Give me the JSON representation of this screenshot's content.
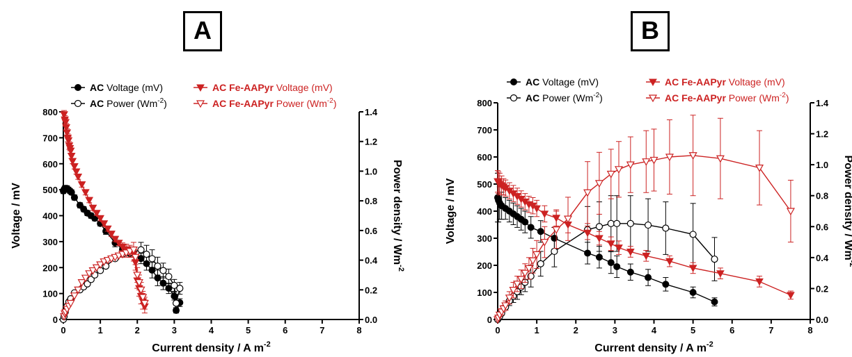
{
  "panels": [
    "A",
    "B"
  ],
  "chart_data": [
    {
      "type": "scatter",
      "panel": "A",
      "xlabel": "Current density / A m",
      "xlabel_sup": "-2",
      "ylabel_left": "Voltage / mV",
      "ylabel_right": "Power density / Wm",
      "ylabel_right_sup": "-2",
      "xlim": [
        0,
        8
      ],
      "ylim_left": [
        0,
        800
      ],
      "ylim_right": [
        0,
        1.4
      ],
      "xticks": [
        0,
        1,
        2,
        3,
        4,
        5,
        6,
        7,
        8
      ],
      "yticks_left": [
        0,
        100,
        200,
        300,
        400,
        500,
        600,
        700,
        800
      ],
      "yticks_right": [
        0.0,
        0.2,
        0.4,
        0.6,
        0.8,
        1.0,
        1.2,
        1.4
      ],
      "legend": [
        {
          "bold": "AC",
          "text": " Voltage (mV)",
          "color": "#000000",
          "marker": "circle-filled"
        },
        {
          "bold": "AC",
          "text": " Power (Wm",
          "sup": "-2",
          "tail": ")",
          "color": "#000000",
          "marker": "circle-open"
        },
        {
          "bold": "AC Fe-AAPyr",
          "text": " Voltage (mV)",
          "color": "#cc2222",
          "marker": "tri-filled"
        },
        {
          "bold": "AC Fe-AAPyr",
          "text": " Power (Wm",
          "sup": "-2",
          "tail": ")",
          "color": "#cc2222",
          "marker": "tri-open"
        }
      ],
      "series": [
        {
          "key": "ac_voltage",
          "axis": "left",
          "color": "#000000",
          "marker": "circle-filled",
          "x": [
            0.0,
            0.02,
            0.04,
            0.06,
            0.08,
            0.1,
            0.14,
            0.18,
            0.22,
            0.3,
            0.45,
            0.55,
            0.65,
            0.75,
            0.85,
            1.0,
            1.15,
            1.4,
            1.6,
            1.8,
            2.1,
            2.25,
            2.4,
            2.55,
            2.7,
            2.85,
            3.0,
            3.05,
            3.15
          ],
          "y": [
            495,
            500,
            505,
            505,
            505,
            505,
            500,
            495,
            490,
            470,
            440,
            425,
            410,
            400,
            390,
            370,
            340,
            295,
            270,
            255,
            235,
            215,
            190,
            160,
            140,
            120,
            90,
            35,
            65
          ],
          "err": [
            10,
            10,
            10,
            10,
            10,
            10,
            10,
            10,
            10,
            10,
            10,
            10,
            10,
            10,
            10,
            10,
            12,
            15,
            15,
            15,
            20,
            25,
            30,
            30,
            25,
            20,
            15,
            10,
            15
          ]
        },
        {
          "key": "ac_power",
          "axis": "right",
          "color": "#000000",
          "marker": "circle-open",
          "x": [
            0.0,
            0.02,
            0.05,
            0.1,
            0.15,
            0.2,
            0.3,
            0.45,
            0.55,
            0.65,
            0.75,
            0.85,
            1.0,
            1.15,
            1.4,
            1.6,
            1.8,
            2.1,
            2.25,
            2.4,
            2.55,
            2.7,
            2.85,
            3.0,
            3.05,
            3.15
          ],
          "y": [
            0.0,
            0.02,
            0.05,
            0.09,
            0.12,
            0.14,
            0.18,
            0.2,
            0.22,
            0.24,
            0.27,
            0.3,
            0.33,
            0.36,
            0.41,
            0.44,
            0.45,
            0.47,
            0.44,
            0.41,
            0.36,
            0.33,
            0.29,
            0.23,
            0.11,
            0.21
          ],
          "err": [
            0,
            0,
            0,
            0,
            0,
            0,
            0,
            0,
            0,
            0,
            0,
            0,
            0,
            0,
            0,
            0.01,
            0.02,
            0.05,
            0.06,
            0.06,
            0.06,
            0.05,
            0.05,
            0.04,
            0.03,
            0.04
          ]
        },
        {
          "key": "fe_voltage",
          "axis": "left",
          "color": "#cc2222",
          "marker": "tri-filled",
          "x": [
            0.02,
            0.04,
            0.06,
            0.08,
            0.1,
            0.12,
            0.14,
            0.16,
            0.18,
            0.2,
            0.22,
            0.25,
            0.3,
            0.35,
            0.4,
            0.5,
            0.6,
            0.7,
            0.8,
            0.9,
            1.0,
            1.1,
            1.2,
            1.3,
            1.4,
            1.5,
            1.6,
            1.7,
            1.8,
            1.9,
            1.95,
            2.0,
            2.05,
            2.1,
            2.15,
            2.2
          ],
          "y": [
            790,
            770,
            760,
            740,
            720,
            700,
            690,
            670,
            660,
            650,
            630,
            610,
            590,
            570,
            550,
            520,
            490,
            460,
            430,
            410,
            390,
            370,
            350,
            330,
            310,
            295,
            280,
            270,
            260,
            250,
            220,
            150,
            120,
            90,
            70,
            50
          ],
          "err": [
            15,
            15,
            15,
            15,
            15,
            15,
            15,
            15,
            10,
            10,
            10,
            10,
            10,
            10,
            10,
            10,
            10,
            10,
            10,
            10,
            10,
            10,
            10,
            10,
            10,
            10,
            15,
            20,
            20,
            25,
            30,
            30,
            30,
            30,
            30,
            25
          ]
        },
        {
          "key": "fe_power",
          "axis": "right",
          "color": "#cc2222",
          "marker": "tri-open",
          "x": [
            0.02,
            0.04,
            0.06,
            0.1,
            0.15,
            0.2,
            0.3,
            0.4,
            0.5,
            0.6,
            0.7,
            0.8,
            0.9,
            1.0,
            1.1,
            1.2,
            1.3,
            1.4,
            1.5,
            1.6,
            1.7,
            1.8,
            1.9,
            1.95,
            2.0,
            2.05,
            2.1,
            2.15,
            2.2
          ],
          "y": [
            0.02,
            0.04,
            0.05,
            0.07,
            0.09,
            0.11,
            0.16,
            0.2,
            0.25,
            0.28,
            0.31,
            0.33,
            0.35,
            0.37,
            0.39,
            0.4,
            0.41,
            0.42,
            0.43,
            0.44,
            0.45,
            0.46,
            0.47,
            0.42,
            0.3,
            0.25,
            0.2,
            0.15,
            0.11
          ],
          "err": [
            0,
            0,
            0,
            0,
            0,
            0,
            0,
            0,
            0,
            0,
            0,
            0,
            0,
            0,
            0,
            0,
            0,
            0,
            0,
            0.02,
            0.03,
            0.04,
            0.05,
            0.05,
            0.05,
            0.05,
            0.05,
            0.04,
            0.04
          ]
        }
      ]
    },
    {
      "type": "scatter",
      "panel": "B",
      "xlabel": "Current density / A m",
      "xlabel_sup": "-2",
      "ylabel_left": "Voltage / mV",
      "ylabel_right": "Power density / Wm",
      "ylabel_right_sup": "-2",
      "xlim": [
        0,
        8
      ],
      "ylim_left": [
        0,
        800
      ],
      "ylim_right": [
        0,
        1.4
      ],
      "xticks": [
        0,
        1,
        2,
        3,
        4,
        5,
        6,
        7,
        8
      ],
      "yticks_left": [
        0,
        100,
        200,
        300,
        400,
        500,
        600,
        700,
        800
      ],
      "yticks_right": [
        0.0,
        0.2,
        0.4,
        0.6,
        0.8,
        1.0,
        1.2,
        1.4
      ],
      "legend": [
        {
          "bold": "AC",
          "text": " Voltage (mV)",
          "color": "#000000",
          "marker": "circle-filled"
        },
        {
          "bold": "AC",
          "text": " Power (Wm",
          "sup": "-2",
          "tail": ")",
          "color": "#000000",
          "marker": "circle-open"
        },
        {
          "bold": "AC Fe-AAPyr",
          "text": " Voltage (mV)",
          "color": "#cc2222",
          "marker": "tri-filled"
        },
        {
          "bold": "AC Fe-AAPyr",
          "text": " Power (Wm",
          "sup": "-2",
          "tail": ")",
          "color": "#cc2222",
          "marker": "tri-open"
        }
      ],
      "series": [
        {
          "key": "ac_voltage",
          "axis": "left",
          "color": "#000000",
          "marker": "circle-filled",
          "x": [
            0.0,
            0.02,
            0.05,
            0.1,
            0.2,
            0.3,
            0.4,
            0.5,
            0.6,
            0.7,
            0.85,
            1.1,
            1.45,
            2.3,
            2.6,
            2.9,
            3.05,
            3.4,
            3.85,
            4.3,
            5.0,
            5.55
          ],
          "y": [
            450,
            440,
            430,
            420,
            410,
            400,
            390,
            380,
            370,
            360,
            340,
            325,
            300,
            245,
            230,
            210,
            195,
            175,
            155,
            130,
            100,
            65
          ],
          "err": [
            90,
            80,
            60,
            50,
            40,
            40,
            40,
            40,
            40,
            40,
            40,
            40,
            40,
            40,
            40,
            40,
            40,
            30,
            30,
            25,
            20,
            15
          ]
        },
        {
          "key": "ac_power",
          "axis": "right",
          "color": "#000000",
          "marker": "circle-open",
          "x": [
            0.0,
            0.02,
            0.05,
            0.1,
            0.2,
            0.3,
            0.4,
            0.5,
            0.6,
            0.7,
            0.85,
            1.1,
            1.45,
            2.3,
            2.6,
            2.9,
            3.05,
            3.4,
            3.85,
            4.3,
            5.0,
            5.55
          ],
          "y": [
            0.0,
            0.01,
            0.02,
            0.04,
            0.08,
            0.12,
            0.15,
            0.18,
            0.21,
            0.24,
            0.28,
            0.36,
            0.44,
            0.58,
            0.6,
            0.62,
            0.62,
            0.62,
            0.61,
            0.59,
            0.55,
            0.39
          ],
          "err": [
            0,
            0,
            0,
            0.01,
            0.02,
            0.03,
            0.04,
            0.05,
            0.05,
            0.06,
            0.07,
            0.08,
            0.1,
            0.15,
            0.16,
            0.18,
            0.18,
            0.18,
            0.17,
            0.17,
            0.2,
            0.14
          ]
        },
        {
          "key": "fe_voltage",
          "axis": "left",
          "color": "#cc2222",
          "marker": "tri-filled",
          "x": [
            0.0,
            0.02,
            0.05,
            0.1,
            0.15,
            0.2,
            0.3,
            0.4,
            0.5,
            0.6,
            0.7,
            0.8,
            0.9,
            1.0,
            1.2,
            1.5,
            1.8,
            2.3,
            2.6,
            2.9,
            3.1,
            3.4,
            3.8,
            4.4,
            5.0,
            5.7,
            6.7,
            7.5
          ],
          "y": [
            510,
            505,
            500,
            495,
            490,
            485,
            475,
            465,
            455,
            445,
            435,
            425,
            420,
            410,
            390,
            375,
            350,
            320,
            300,
            280,
            265,
            250,
            235,
            215,
            190,
            170,
            140,
            90
          ],
          "err": [
            40,
            40,
            40,
            35,
            30,
            30,
            30,
            30,
            30,
            30,
            30,
            30,
            30,
            30,
            30,
            30,
            30,
            25,
            25,
            25,
            25,
            20,
            20,
            20,
            20,
            20,
            20,
            15
          ]
        },
        {
          "key": "fe_power",
          "axis": "right",
          "color": "#cc2222",
          "marker": "tri-open",
          "x": [
            0.0,
            0.02,
            0.05,
            0.1,
            0.15,
            0.2,
            0.3,
            0.4,
            0.5,
            0.6,
            0.7,
            0.8,
            0.9,
            1.0,
            1.2,
            1.5,
            1.8,
            2.3,
            2.6,
            2.9,
            3.1,
            3.4,
            3.8,
            4.0,
            4.4,
            5.0,
            5.7,
            6.7,
            7.5
          ],
          "y": [
            0.0,
            0.01,
            0.03,
            0.05,
            0.07,
            0.09,
            0.14,
            0.19,
            0.23,
            0.26,
            0.3,
            0.33,
            0.38,
            0.42,
            0.5,
            0.58,
            0.65,
            0.82,
            0.88,
            0.94,
            0.97,
            1.0,
            1.02,
            1.03,
            1.05,
            1.06,
            1.04,
            0.98,
            0.7
          ],
          "err": [
            0,
            0,
            0.01,
            0.02,
            0.02,
            0.03,
            0.04,
            0.05,
            0.05,
            0.06,
            0.06,
            0.07,
            0.08,
            0.09,
            0.1,
            0.12,
            0.14,
            0.2,
            0.2,
            0.16,
            0.18,
            0.18,
            0.2,
            0.2,
            0.24,
            0.26,
            0.26,
            0.24,
            0.2
          ]
        }
      ]
    }
  ]
}
